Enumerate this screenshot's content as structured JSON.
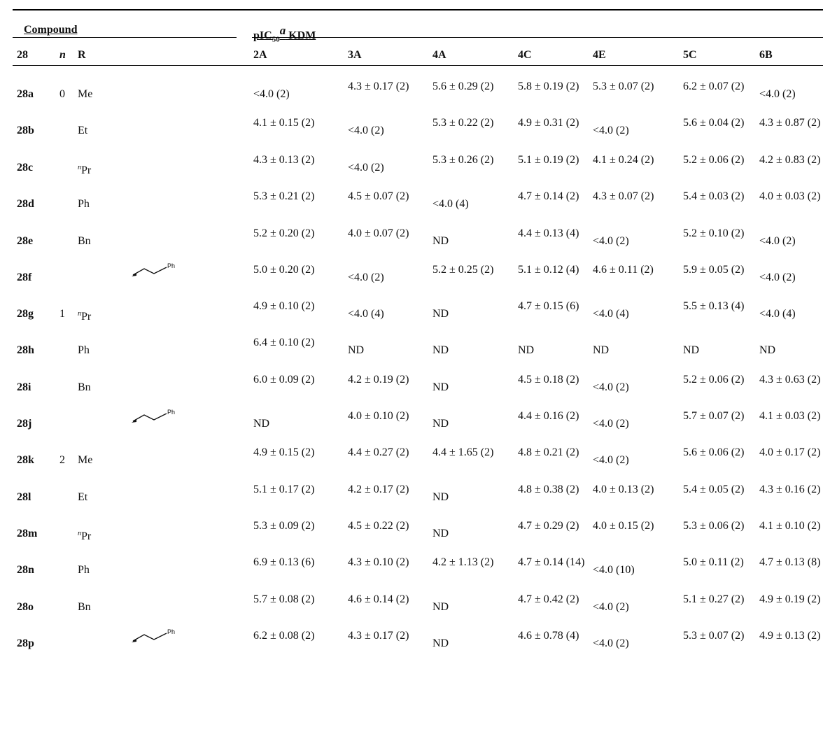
{
  "table": {
    "group_compound": "Compound",
    "group_pic": {
      "base": "pIC",
      "sub": "50",
      "sup": "a",
      "tail": " KDM"
    },
    "headers": [
      "28",
      "n",
      "R",
      "2A",
      "3A",
      "4A",
      "4C",
      "4E",
      "5C",
      "6B"
    ],
    "rows": [
      {
        "id": "28a",
        "n": "0",
        "r": "Me",
        "r_sup": "",
        "struct": false,
        "v": [
          "<4.0 (2)",
          "4.3 ± 0.17 (2)",
          "5.6 ± 0.29 (2)",
          "5.8 ± 0.19 (2)",
          "5.3 ± 0.07 (2)",
          "6.2 ± 0.07 (2)",
          "<4.0 (2)"
        ]
      },
      {
        "id": "28b",
        "n": "",
        "r": "Et",
        "r_sup": "",
        "struct": false,
        "v": [
          "4.1 ± 0.15 (2)",
          "<4.0 (2)",
          "5.3 ± 0.22 (2)",
          "4.9 ± 0.31 (2)",
          "<4.0 (2)",
          "5.6 ± 0.04 (2)",
          "4.3 ± 0.87 (2)"
        ]
      },
      {
        "id": "28c",
        "n": "",
        "r": "Pr",
        "r_sup": "n",
        "struct": false,
        "v": [
          "4.3 ± 0.13 (2)",
          "<4.0 (2)",
          "5.3 ± 0.26 (2)",
          "5.1 ± 0.19 (2)",
          "4.1 ± 0.24 (2)",
          "5.2 ± 0.06 (2)",
          "4.2 ± 0.83 (2)"
        ]
      },
      {
        "id": "28d",
        "n": "",
        "r": "Ph",
        "r_sup": "",
        "struct": false,
        "v": [
          "5.3 ± 0.21 (2)",
          "4.5 ± 0.07 (2)",
          "<4.0 (4)",
          "4.7 ± 0.14 (2)",
          "4.3 ± 0.07 (2)",
          "5.4 ± 0.03 (2)",
          "4.0 ± 0.03 (2)"
        ]
      },
      {
        "id": "28e",
        "n": "",
        "r": "Bn",
        "r_sup": "",
        "struct": false,
        "v": [
          "5.2 ± 0.20 (2)",
          "4.0 ± 0.07 (2)",
          "ND",
          "4.4 ± 0.13 (4)",
          "<4.0 (2)",
          "5.2 ± 0.10 (2)",
          "<4.0 (2)"
        ]
      },
      {
        "id": "28f",
        "n": "",
        "r": "",
        "r_sup": "",
        "struct": true,
        "v": [
          "5.0 ± 0.20 (2)",
          "<4.0 (2)",
          "5.2 ± 0.25 (2)",
          "5.1 ± 0.12 (4)",
          "4.6 ± 0.11 (2)",
          "5.9 ± 0.05 (2)",
          "<4.0 (2)"
        ]
      },
      {
        "id": "28g",
        "n": "1",
        "r": "Pr",
        "r_sup": "n",
        "struct": false,
        "v": [
          "4.9 ± 0.10 (2)",
          "<4.0 (4)",
          "ND",
          "4.7 ± 0.15 (6)",
          "<4.0 (4)",
          "5.5 ± 0.13 (4)",
          "<4.0 (4)"
        ]
      },
      {
        "id": "28h",
        "n": "",
        "r": "Ph",
        "r_sup": "",
        "struct": false,
        "v": [
          "6.4 ± 0.10 (2)",
          "ND",
          "ND",
          "ND",
          "ND",
          "ND",
          "ND"
        ]
      },
      {
        "id": "28i",
        "n": "",
        "r": "Bn",
        "r_sup": "",
        "struct": false,
        "v": [
          "6.0 ± 0.09 (2)",
          "4.2 ± 0.19 (2)",
          "ND",
          "4.5 ± 0.18 (2)",
          "<4.0 (2)",
          "5.2 ± 0.06 (2)",
          "4.3 ± 0.63 (2)"
        ]
      },
      {
        "id": "28j",
        "n": "",
        "r": "",
        "r_sup": "",
        "struct": true,
        "v": [
          "ND",
          "4.0 ± 0.10 (2)",
          "ND",
          "4.4 ± 0.16 (2)",
          "<4.0 (2)",
          "5.7 ± 0.07 (2)",
          "4.1 ± 0.03 (2)"
        ]
      },
      {
        "id": "28k",
        "n": "2",
        "r": "Me",
        "r_sup": "",
        "struct": false,
        "v": [
          "4.9 ± 0.15 (2)",
          "4.4 ± 0.27 (2)",
          "4.4 ± 1.65 (2)",
          "4.8 ± 0.21 (2)",
          "<4.0 (2)",
          "5.6 ± 0.06 (2)",
          "4.0 ± 0.17 (2)"
        ]
      },
      {
        "id": "28l",
        "n": "",
        "r": "Et",
        "r_sup": "",
        "struct": false,
        "v": [
          "5.1 ± 0.17 (2)",
          "4.2 ± 0.17 (2)",
          "ND",
          "4.8 ± 0.38 (2)",
          "4.0 ± 0.13 (2)",
          "5.4 ± 0.05 (2)",
          "4.3 ± 0.16 (2)"
        ]
      },
      {
        "id": "28m",
        "n": "",
        "r": "Pr",
        "r_sup": "n",
        "struct": false,
        "v": [
          "5.3 ± 0.09 (2)",
          "4.5 ± 0.22 (2)",
          "ND",
          "4.7 ± 0.29 (2)",
          "4.0 ± 0.15 (2)",
          "5.3 ± 0.06 (2)",
          "4.1 ± 0.10 (2)"
        ]
      },
      {
        "id": "28n",
        "n": "",
        "r": "Ph",
        "r_sup": "",
        "struct": false,
        "v": [
          "6.9 ± 0.13 (6)",
          "4.3 ± 0.10 (2)",
          "4.2 ± 1.13 (2)",
          "4.7 ± 0.14 (14)",
          "<4.0 (10)",
          "5.0 ± 0.11 (2)",
          "4.7 ± 0.13 (8)"
        ]
      },
      {
        "id": "28o",
        "n": "",
        "r": "Bn",
        "r_sup": "",
        "struct": false,
        "v": [
          "5.7 ± 0.08 (2)",
          "4.6 ± 0.14 (2)",
          "ND",
          "4.7 ± 0.42 (2)",
          "<4.0 (2)",
          "5.1 ± 0.27 (2)",
          "4.9 ± 0.19 (2)"
        ]
      },
      {
        "id": "28p",
        "n": "",
        "r": "",
        "r_sup": "",
        "struct": true,
        "v": [
          "6.2 ± 0.08 (2)",
          "4.3 ± 0.17 (2)",
          "ND",
          "4.6 ± 0.78 (4)",
          "<4.0 (2)",
          "5.3 ± 0.07 (2)",
          "4.9 ± 0.13 (2)"
        ]
      }
    ],
    "struct_label": "Ph"
  }
}
